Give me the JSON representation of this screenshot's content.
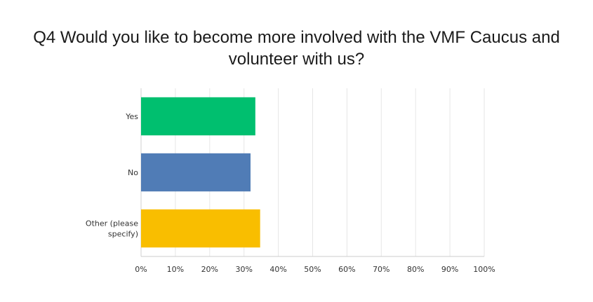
{
  "chart_data": {
    "type": "bar",
    "orientation": "horizontal",
    "title_lines": [
      "Q4 Would you like to become more involved with the VMF Caucus and",
      "volunteer with us?"
    ],
    "categories": [
      {
        "label_lines": [
          "Yes"
        ],
        "value": 33.3,
        "color": "#00bf6f"
      },
      {
        "label_lines": [
          "No"
        ],
        "value": 31.9,
        "color": "#507cb6"
      },
      {
        "label_lines": [
          "Other (please",
          "specify)"
        ],
        "value": 34.7,
        "color": "#f9be00"
      }
    ],
    "x_ticks": [
      "0%",
      "10%",
      "20%",
      "30%",
      "40%",
      "50%",
      "60%",
      "70%",
      "80%",
      "90%",
      "100%"
    ],
    "xlim": [
      0,
      100
    ],
    "grid": true,
    "legend": "none"
  }
}
